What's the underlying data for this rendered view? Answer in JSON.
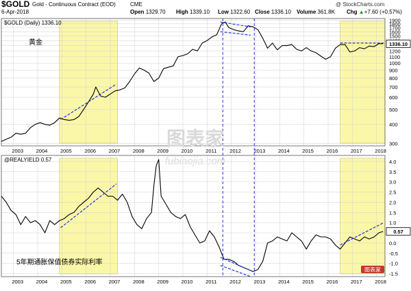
{
  "header": {
    "symbol": "$GOLD",
    "description": "Gold - Continuous Contract (EOD)",
    "exchange": "CME",
    "credit": "@ StockCharts.com",
    "date": "6-Apr-2018",
    "ohlc": [
      {
        "label": "Open",
        "value": "1329.70"
      },
      {
        "label": "High",
        "value": "1339.10"
      },
      {
        "label": "Low",
        "value": "1322.60"
      },
      {
        "label": "Close",
        "value": "1336.10"
      },
      {
        "label": "Volume",
        "value": "361.8K"
      },
      {
        "label": "Chg",
        "value": "+7.60 (+0.57%)"
      }
    ],
    "change_icon": "up-triangle-icon"
  },
  "colors": {
    "line": "#000000",
    "highlight": "#fbf7a8",
    "highlight_border": "#c8c060",
    "trend": "#1f34d6",
    "grid": "#cfcfcf"
  },
  "watermark": {
    "cn": "图表家",
    "en": "fubiaojia.com"
  },
  "logo_text": "图表家",
  "chart_data": [
    {
      "type": "line",
      "title": "$GOLD (Daily) 1336.10",
      "annotation": "黄金",
      "yscale": "log",
      "ylim": [
        290,
        1950
      ],
      "yticks": [
        300,
        400,
        500,
        600,
        700,
        800,
        900,
        1000,
        1100,
        1200,
        1300,
        1400,
        1500,
        1600,
        1700,
        1800,
        1900
      ],
      "last_value": "1336.10",
      "xlim": [
        2002.5,
        2018.35
      ],
      "xticks": [
        "2003",
        "2004",
        "2005",
        "2006",
        "2007",
        "2008",
        "2009",
        "2010",
        "2011",
        "2012",
        "2013",
        "2014",
        "2015",
        "2016",
        "2017",
        "2018"
      ],
      "series": [
        {
          "x": [
            2002.5,
            2002.7,
            2002.9,
            2003.1,
            2003.3,
            2003.5,
            2003.7,
            2003.9,
            2004.1,
            2004.3,
            2004.5,
            2004.7,
            2004.9,
            2005.1,
            2005.3,
            2005.5,
            2005.7,
            2005.9,
            2006.1,
            2006.3,
            2006.4,
            2006.6,
            2006.8,
            2007.0,
            2007.2,
            2007.4,
            2007.6,
            2007.8,
            2008.0,
            2008.2,
            2008.4,
            2008.6,
            2008.8,
            2009.0,
            2009.2,
            2009.4,
            2009.6,
            2009.8,
            2010.0,
            2010.2,
            2010.4,
            2010.6,
            2010.8,
            2011.0,
            2011.2,
            2011.4,
            2011.6,
            2011.75,
            2011.9,
            2012.1,
            2012.3,
            2012.5,
            2012.7,
            2012.9,
            2013.1,
            2013.3,
            2013.5,
            2013.7,
            2013.9,
            2014.1,
            2014.3,
            2014.5,
            2014.7,
            2014.9,
            2015.1,
            2015.3,
            2015.5,
            2015.7,
            2015.9,
            2016.1,
            2016.3,
            2016.5,
            2016.7,
            2016.9,
            2017.1,
            2017.3,
            2017.5,
            2017.7,
            2017.9,
            2018.1,
            2018.27
          ],
          "y": [
            310,
            320,
            330,
            350,
            345,
            350,
            380,
            400,
            410,
            400,
            395,
            410,
            440,
            430,
            425,
            430,
            450,
            500,
            560,
            630,
            700,
            610,
            600,
            630,
            660,
            670,
            690,
            760,
            850,
            930,
            900,
            860,
            760,
            800,
            920,
            940,
            960,
            1100,
            1120,
            1150,
            1230,
            1200,
            1350,
            1400,
            1480,
            1530,
            1800,
            1850,
            1700,
            1650,
            1620,
            1600,
            1750,
            1720,
            1650,
            1450,
            1250,
            1350,
            1220,
            1300,
            1300,
            1320,
            1230,
            1200,
            1260,
            1200,
            1170,
            1110,
            1060,
            1100,
            1250,
            1320,
            1320,
            1180,
            1200,
            1260,
            1240,
            1290,
            1280,
            1340,
            1336
          ]
        }
      ],
      "highlights": [
        [
          2004.9,
          2007.3
        ],
        [
          2016.5,
          2018.35
        ]
      ],
      "trendlines": [
        {
          "x": [
            2004.95,
            2007.25
          ],
          "y": [
            430,
            730
          ]
        },
        {
          "x": [
            2011.55,
            2012.8
          ],
          "y": [
            1850,
            1720
          ]
        },
        {
          "x": [
            2011.55,
            2012.8
          ],
          "y": [
            1600,
            1520
          ]
        },
        {
          "x": [
            2016.5,
            2018.3
          ],
          "y": [
            1350,
            1350
          ]
        }
      ]
    },
    {
      "type": "line",
      "title": "@REALYIELD 0.57",
      "annotation": "5年期通胀保值债券实际利率",
      "ylim": [
        -1.65,
        4.3
      ],
      "yticks": [
        -1.5,
        -1.0,
        -0.5,
        0.0,
        0.5,
        1.0,
        1.5,
        2.0,
        2.5,
        3.0,
        3.5,
        4.0
      ],
      "ytick_labels": [
        "-1.5",
        "-1.0",
        "-0.5",
        "0.0",
        "0.5",
        "1.0",
        "1.5",
        "2.0",
        "2.5",
        "3.0",
        "3.5",
        "4.0"
      ],
      "last_value": "0.57",
      "xlim": [
        2002.5,
        2018.35
      ],
      "xticks": [
        "2003",
        "2004",
        "2005",
        "2006",
        "2007",
        "2008",
        "2009",
        "2010",
        "2011",
        "2012",
        "2013",
        "2014",
        "2015",
        "2016",
        "2017",
        "2018"
      ],
      "series": [
        {
          "x": [
            2002.5,
            2002.7,
            2002.9,
            2003.1,
            2003.3,
            2003.5,
            2003.7,
            2003.9,
            2004.1,
            2004.3,
            2004.5,
            2004.7,
            2004.9,
            2005.1,
            2005.3,
            2005.5,
            2005.7,
            2005.9,
            2006.1,
            2006.3,
            2006.5,
            2006.7,
            2006.9,
            2007.1,
            2007.3,
            2007.5,
            2007.7,
            2007.9,
            2008.1,
            2008.3,
            2008.5,
            2008.7,
            2008.8,
            2008.9,
            2009.0,
            2009.1,
            2009.3,
            2009.5,
            2009.7,
            2009.9,
            2010.1,
            2010.3,
            2010.5,
            2010.7,
            2010.9,
            2011.1,
            2011.3,
            2011.5,
            2011.7,
            2011.9,
            2012.1,
            2012.3,
            2012.5,
            2012.7,
            2012.9,
            2013.1,
            2013.3,
            2013.5,
            2013.7,
            2013.9,
            2014.1,
            2014.3,
            2014.5,
            2014.7,
            2014.9,
            2015.1,
            2015.3,
            2015.5,
            2015.7,
            2015.9,
            2016.1,
            2016.3,
            2016.5,
            2016.7,
            2016.9,
            2017.1,
            2017.3,
            2017.5,
            2017.7,
            2017.9,
            2018.1,
            2018.27
          ],
          "y": [
            2.3,
            2.0,
            1.6,
            1.4,
            0.9,
            1.3,
            1.0,
            1.1,
            0.9,
            0.5,
            1.1,
            0.9,
            1.1,
            1.2,
            1.4,
            1.5,
            1.8,
            2.0,
            2.2,
            2.5,
            2.7,
            2.5,
            2.3,
            2.3,
            2.1,
            2.4,
            2.0,
            1.3,
            0.9,
            0.7,
            1.2,
            1.5,
            2.8,
            3.8,
            4.1,
            2.3,
            1.9,
            1.5,
            1.3,
            1.2,
            1.4,
            0.8,
            0.4,
            0.0,
            0.1,
            0.6,
            0.3,
            -0.2,
            -0.8,
            -0.8,
            -0.9,
            -1.1,
            -1.2,
            -1.3,
            -1.4,
            -1.3,
            -0.9,
            0.0,
            0.1,
            0.3,
            0.2,
            0.1,
            0.5,
            0.3,
            0.1,
            -0.3,
            0.1,
            0.4,
            0.3,
            0.3,
            0.2,
            -0.1,
            -0.3,
            0.0,
            0.3,
            0.2,
            0.1,
            0.3,
            0.2,
            0.3,
            0.5,
            0.57
          ]
        }
      ],
      "highlights": [
        [
          2004.9,
          2007.3
        ],
        [
          2016.5,
          2018.35
        ]
      ],
      "trendlines": [
        {
          "x": [
            2004.95,
            2007.25
          ],
          "y": [
            0.75,
            2.9
          ]
        },
        {
          "x": [
            2011.55,
            2012.8
          ],
          "y": [
            -0.7,
            -1.35
          ]
        },
        {
          "x": [
            2011.55,
            2012.8
          ],
          "y": [
            -1.1,
            -1.65
          ]
        },
        {
          "x": [
            2016.5,
            2018.3
          ],
          "y": [
            -0.1,
            1.0
          ]
        }
      ]
    }
  ],
  "vlines_x": [
    2011.65,
    2012.95
  ]
}
